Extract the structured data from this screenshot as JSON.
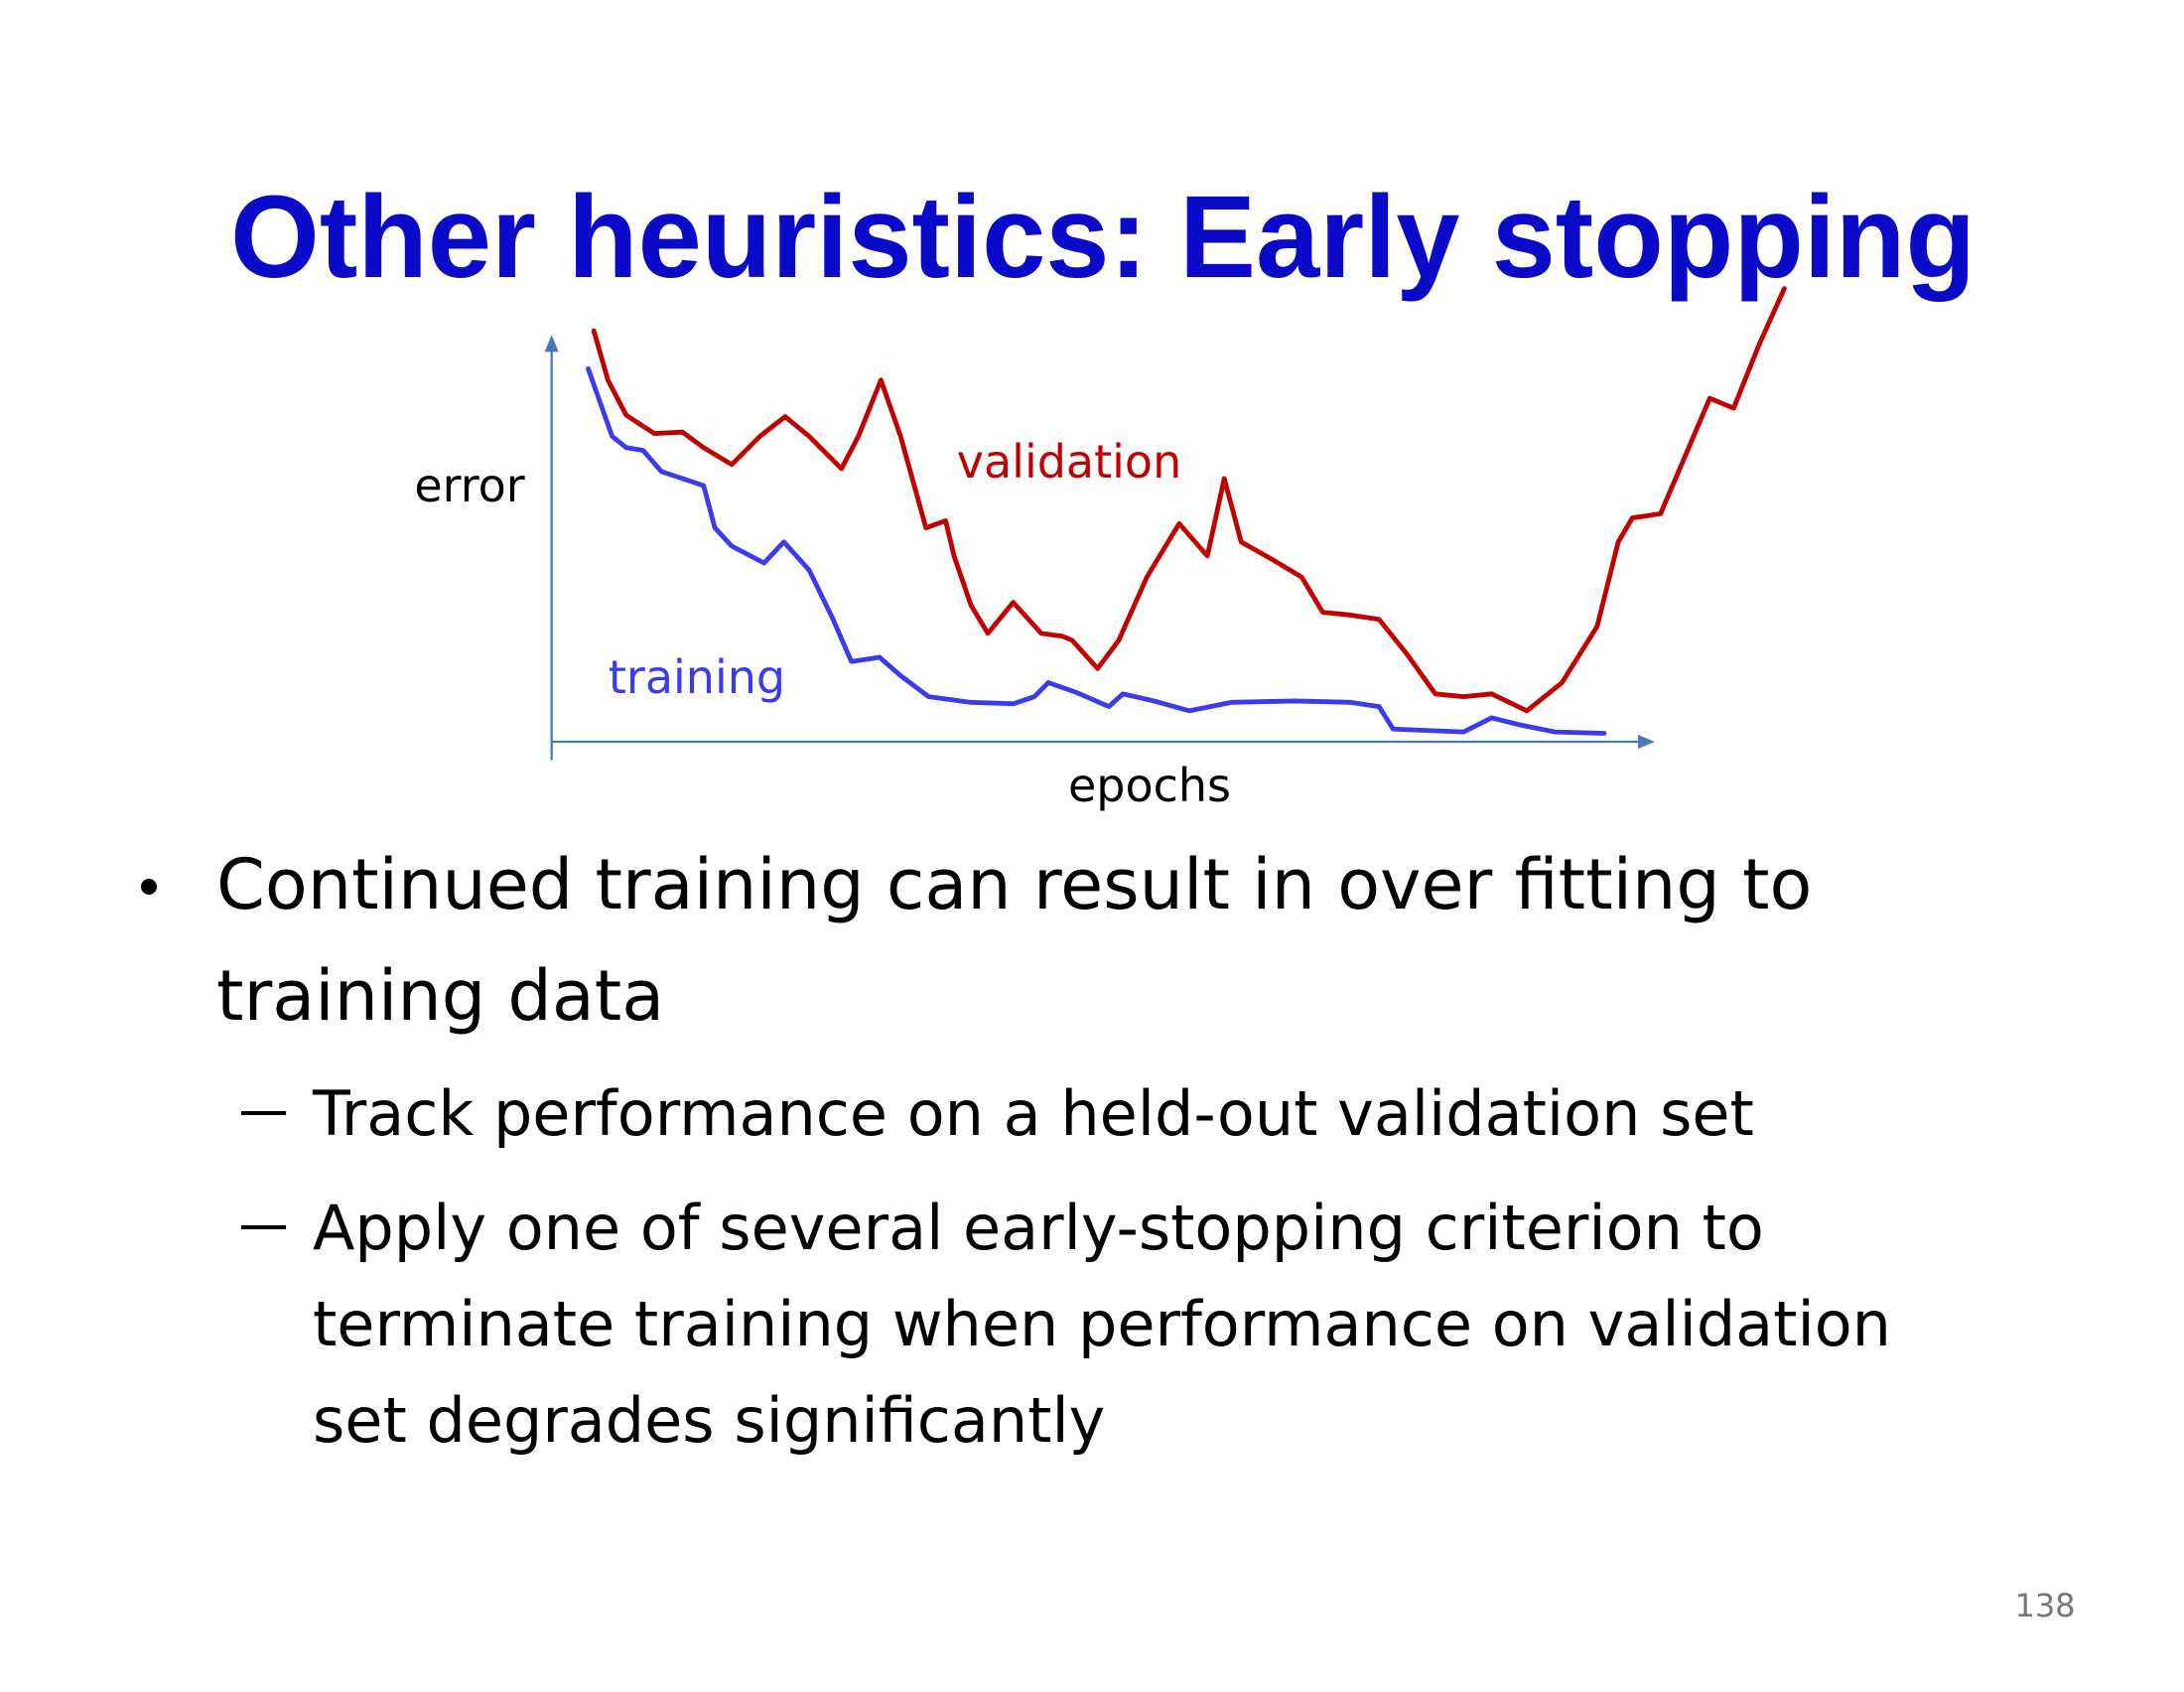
{
  "title": "Other heuristics: Early stopping",
  "figure": {
    "y_label": "error",
    "x_label": "epochs",
    "series_labels": [
      "validation",
      "training"
    ]
  },
  "bullets": [
    {
      "lines": [
        "Continued training can result in over fitting to",
        "training data"
      ],
      "sub": [
        {
          "lines": [
            "Track performance on a held-out validation set"
          ]
        },
        {
          "lines": [
            "Apply one of several early-stopping criterion to",
            "terminate training when performance on validation",
            "set degrades significantly"
          ]
        }
      ]
    }
  ],
  "page_number": 138
}
